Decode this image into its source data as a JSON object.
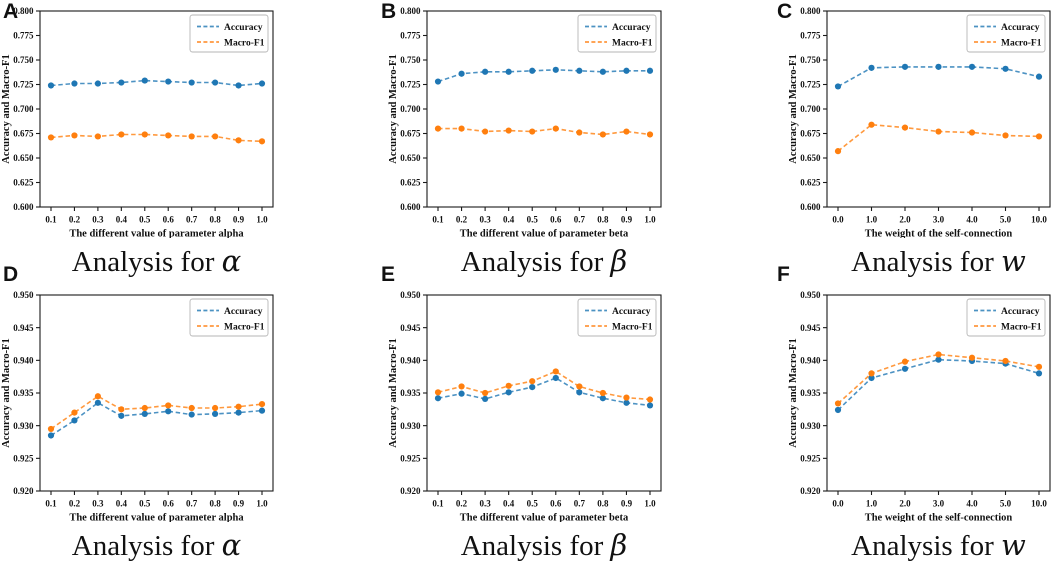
{
  "figure": {
    "background": "#ffffff",
    "legend_labels": [
      "Accuracy",
      "Macro-F1"
    ],
    "series_colors": {
      "Accuracy": "#1f77b4",
      "Macro-F1": "#ff7f0e"
    }
  },
  "chart_data": [
    {
      "panel_label": "A",
      "type": "line",
      "grid": false,
      "legend_position": "top-right",
      "caption_prefix": "Analysis for ",
      "caption_symbol": "α",
      "xlabel": "The different value of parameter alpha",
      "ylabel": "Accuracy and Macro-F1",
      "categories": [
        "0.1",
        "0.2",
        "0.3",
        "0.4",
        "0.5",
        "0.6",
        "0.7",
        "0.8",
        "0.9",
        "1.0"
      ],
      "ylim": [
        0.6,
        0.8
      ],
      "yticks": [
        "0.600",
        "0.625",
        "0.650",
        "0.675",
        "0.700",
        "0.725",
        "0.750",
        "0.775",
        "0.800"
      ],
      "series": [
        {
          "name": "Accuracy",
          "color": "#1f77b4",
          "values": [
            0.724,
            0.726,
            0.726,
            0.727,
            0.729,
            0.728,
            0.727,
            0.727,
            0.724,
            0.726
          ]
        },
        {
          "name": "Macro-F1",
          "color": "#ff7f0e",
          "values": [
            0.671,
            0.673,
            0.672,
            0.674,
            0.674,
            0.673,
            0.672,
            0.672,
            0.668,
            0.667
          ]
        }
      ]
    },
    {
      "panel_label": "B",
      "type": "line",
      "grid": false,
      "legend_position": "top-right",
      "caption_prefix": "Analysis for ",
      "caption_symbol": "β",
      "xlabel": "The different value of parameter beta",
      "ylabel": "Accuracy and Macro-F1",
      "categories": [
        "0.1",
        "0.2",
        "0.3",
        "0.4",
        "0.5",
        "0.6",
        "0.7",
        "0.8",
        "0.9",
        "1.0"
      ],
      "ylim": [
        0.6,
        0.8
      ],
      "yticks": [
        "0.600",
        "0.625",
        "0.650",
        "0.675",
        "0.700",
        "0.725",
        "0.750",
        "0.775",
        "0.800"
      ],
      "series": [
        {
          "name": "Accuracy",
          "color": "#1f77b4",
          "values": [
            0.728,
            0.736,
            0.738,
            0.738,
            0.739,
            0.74,
            0.739,
            0.738,
            0.739,
            0.739
          ]
        },
        {
          "name": "Macro-F1",
          "color": "#ff7f0e",
          "values": [
            0.68,
            0.68,
            0.677,
            0.678,
            0.677,
            0.68,
            0.676,
            0.674,
            0.677,
            0.674
          ]
        }
      ]
    },
    {
      "panel_label": "C",
      "type": "line",
      "grid": false,
      "legend_position": "top-right",
      "caption_prefix": "Analysis for ",
      "caption_symbol": "w",
      "xlabel": "The weight of the self-connection",
      "ylabel": "Accuracy and Macro-F1",
      "categories": [
        "0.0",
        "1.0",
        "2.0",
        "3.0",
        "4.0",
        "5.0",
        "10.0"
      ],
      "ylim": [
        0.6,
        0.8
      ],
      "yticks": [
        "0.600",
        "0.625",
        "0.650",
        "0.675",
        "0.700",
        "0.725",
        "0.750",
        "0.775",
        "0.800"
      ],
      "series": [
        {
          "name": "Accuracy",
          "color": "#1f77b4",
          "values": [
            0.723,
            0.742,
            0.743,
            0.743,
            0.743,
            0.741,
            0.733
          ]
        },
        {
          "name": "Macro-F1",
          "color": "#ff7f0e",
          "values": [
            0.657,
            0.684,
            0.681,
            0.677,
            0.676,
            0.673,
            0.672
          ]
        }
      ]
    },
    {
      "panel_label": "D",
      "type": "line",
      "grid": false,
      "legend_position": "top-right",
      "caption_prefix": "Analysis for ",
      "caption_symbol": "α",
      "xlabel": "The different value of parameter alpha",
      "ylabel": "Accuracy and Macro-F1",
      "categories": [
        "0.1",
        "0.2",
        "0.3",
        "0.4",
        "0.5",
        "0.6",
        "0.7",
        "0.8",
        "0.9",
        "1.0"
      ],
      "ylim": [
        0.92,
        0.95
      ],
      "yticks": [
        "0.920",
        "0.925",
        "0.930",
        "0.935",
        "0.940",
        "0.945",
        "0.950"
      ],
      "series": [
        {
          "name": "Accuracy",
          "color": "#1f77b4",
          "values": [
            0.9285,
            0.9308,
            0.9335,
            0.9315,
            0.9318,
            0.9322,
            0.9317,
            0.9318,
            0.932,
            0.9323
          ]
        },
        {
          "name": "Macro-F1",
          "color": "#ff7f0e",
          "values": [
            0.9295,
            0.932,
            0.9345,
            0.9325,
            0.9327,
            0.9331,
            0.9327,
            0.9327,
            0.9329,
            0.9333
          ]
        }
      ]
    },
    {
      "panel_label": "E",
      "type": "line",
      "grid": false,
      "legend_position": "top-right",
      "caption_prefix": "Analysis for ",
      "caption_symbol": "β",
      "xlabel": "The different value of parameter beta",
      "ylabel": "Accuracy and Macro-F1",
      "categories": [
        "0.1",
        "0.2",
        "0.3",
        "0.4",
        "0.5",
        "0.6",
        "0.7",
        "0.8",
        "0.9",
        "1.0"
      ],
      "ylim": [
        0.92,
        0.95
      ],
      "yticks": [
        "0.920",
        "0.925",
        "0.930",
        "0.935",
        "0.940",
        "0.945",
        "0.950"
      ],
      "series": [
        {
          "name": "Accuracy",
          "color": "#1f77b4",
          "values": [
            0.9342,
            0.9349,
            0.9341,
            0.9351,
            0.9359,
            0.9373,
            0.9351,
            0.9342,
            0.9335,
            0.9331
          ]
        },
        {
          "name": "Macro-F1",
          "color": "#ff7f0e",
          "values": [
            0.9351,
            0.936,
            0.935,
            0.9361,
            0.9368,
            0.9383,
            0.936,
            0.935,
            0.9343,
            0.934
          ]
        }
      ]
    },
    {
      "panel_label": "F",
      "type": "line",
      "grid": false,
      "legend_position": "top-right",
      "caption_prefix": "Analysis for ",
      "caption_symbol": "w",
      "xlabel": "The weight of the self-connection",
      "ylabel": "Accuracy and Macro-F1",
      "categories": [
        "0.0",
        "1.0",
        "2.0",
        "3.0",
        "4.0",
        "5.0",
        "10.0"
      ],
      "ylim": [
        0.92,
        0.95
      ],
      "yticks": [
        "0.920",
        "0.925",
        "0.930",
        "0.935",
        "0.940",
        "0.945",
        "0.950"
      ],
      "series": [
        {
          "name": "Accuracy",
          "color": "#1f77b4",
          "values": [
            0.9324,
            0.9373,
            0.9387,
            0.9401,
            0.9399,
            0.9395,
            0.938
          ]
        },
        {
          "name": "Macro-F1",
          "color": "#ff7f0e",
          "values": [
            0.9334,
            0.938,
            0.9398,
            0.9409,
            0.9404,
            0.9399,
            0.939
          ]
        }
      ]
    }
  ]
}
